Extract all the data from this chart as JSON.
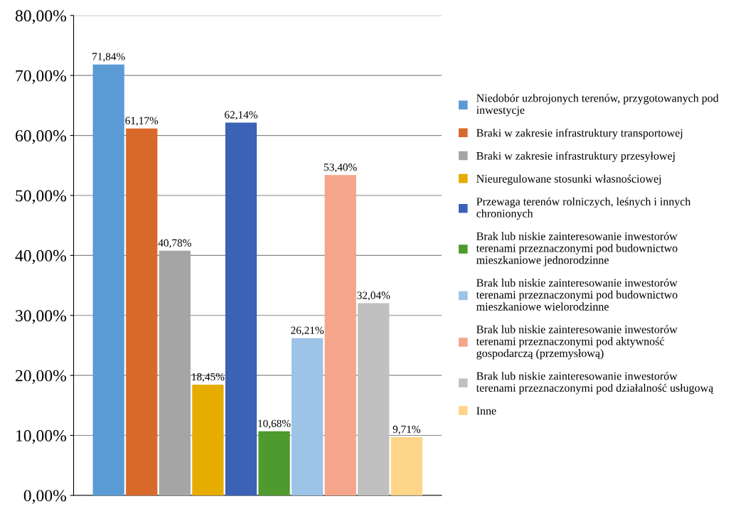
{
  "chart_data": {
    "type": "bar",
    "categories": [
      null
    ],
    "series": [
      {
        "name": "Niedobór uzbrojonych terenów, przygotowanych pod inwestycje",
        "color": "#5b9bd5",
        "values": [
          71.84
        ],
        "value_labels": [
          "71,84%"
        ]
      },
      {
        "name": "Braki w zakresie infrastruktury transportowej",
        "color": "#d9692b",
        "values": [
          61.17
        ],
        "value_labels": [
          "61,17%"
        ]
      },
      {
        "name": "Braki w zakresie infrastruktury przesyłowej",
        "color": "#a5a5a5",
        "values": [
          40.78
        ],
        "value_labels": [
          "40,78%"
        ]
      },
      {
        "name": "Nieuregulowane stosunki własnościowej",
        "color": "#e6ac00",
        "values": [
          18.45
        ],
        "value_labels": [
          "18,45%"
        ]
      },
      {
        "name": "Przewaga terenów rolniczych, leśnych i innych chronionych",
        "color": "#3a62b5",
        "values": [
          62.14
        ],
        "value_labels": [
          "62,14%"
        ]
      },
      {
        "name": "Brak lub niskie zainteresowanie inwestorów terenami przeznaczonymi pod budownictwo mieszkaniowe jednorodzinne",
        "color": "#4e9a2e",
        "values": [
          10.68
        ],
        "value_labels": [
          "10,68%"
        ]
      },
      {
        "name": "Brak lub niskie zainteresowanie inwestorów terenami przeznaczonymi pod budownictwo mieszkaniowe wielorodzinne",
        "color": "#9dc3e6",
        "values": [
          26.21
        ],
        "value_labels": [
          "26,21%"
        ]
      },
      {
        "name": "Brak lub niskie zainteresowanie inwestorów terenami przeznaczonymi pod aktywność gospodarczą (przemysłową)",
        "color": "#f4a58a",
        "values": [
          53.4
        ],
        "value_labels": [
          "53,40%"
        ]
      },
      {
        "name": "Brak lub niskie zainteresowanie inwestorów terenami przeznaczonymi pod działalność usługową",
        "color": "#c0c0c0",
        "values": [
          32.04
        ],
        "value_labels": [
          "32,04%"
        ]
      },
      {
        "name": "Inne",
        "color": "#ffd58a",
        "values": [
          9.71
        ],
        "value_labels": [
          "9,71%"
        ]
      }
    ],
    "ylim": [
      0,
      80
    ],
    "yticks": [
      {
        "value": 0,
        "label": "0,00%"
      },
      {
        "value": 10,
        "label": "10,00%"
      },
      {
        "value": 20,
        "label": "20,00%"
      },
      {
        "value": 30,
        "label": "30,00%"
      },
      {
        "value": 40,
        "label": "40,00%"
      },
      {
        "value": 50,
        "label": "50,00%"
      },
      {
        "value": 60,
        "label": "60,00%"
      },
      {
        "value": 70,
        "label": "70,00%"
      },
      {
        "value": 80,
        "label": "80,00%"
      }
    ],
    "grid": "y",
    "legend": "right"
  }
}
